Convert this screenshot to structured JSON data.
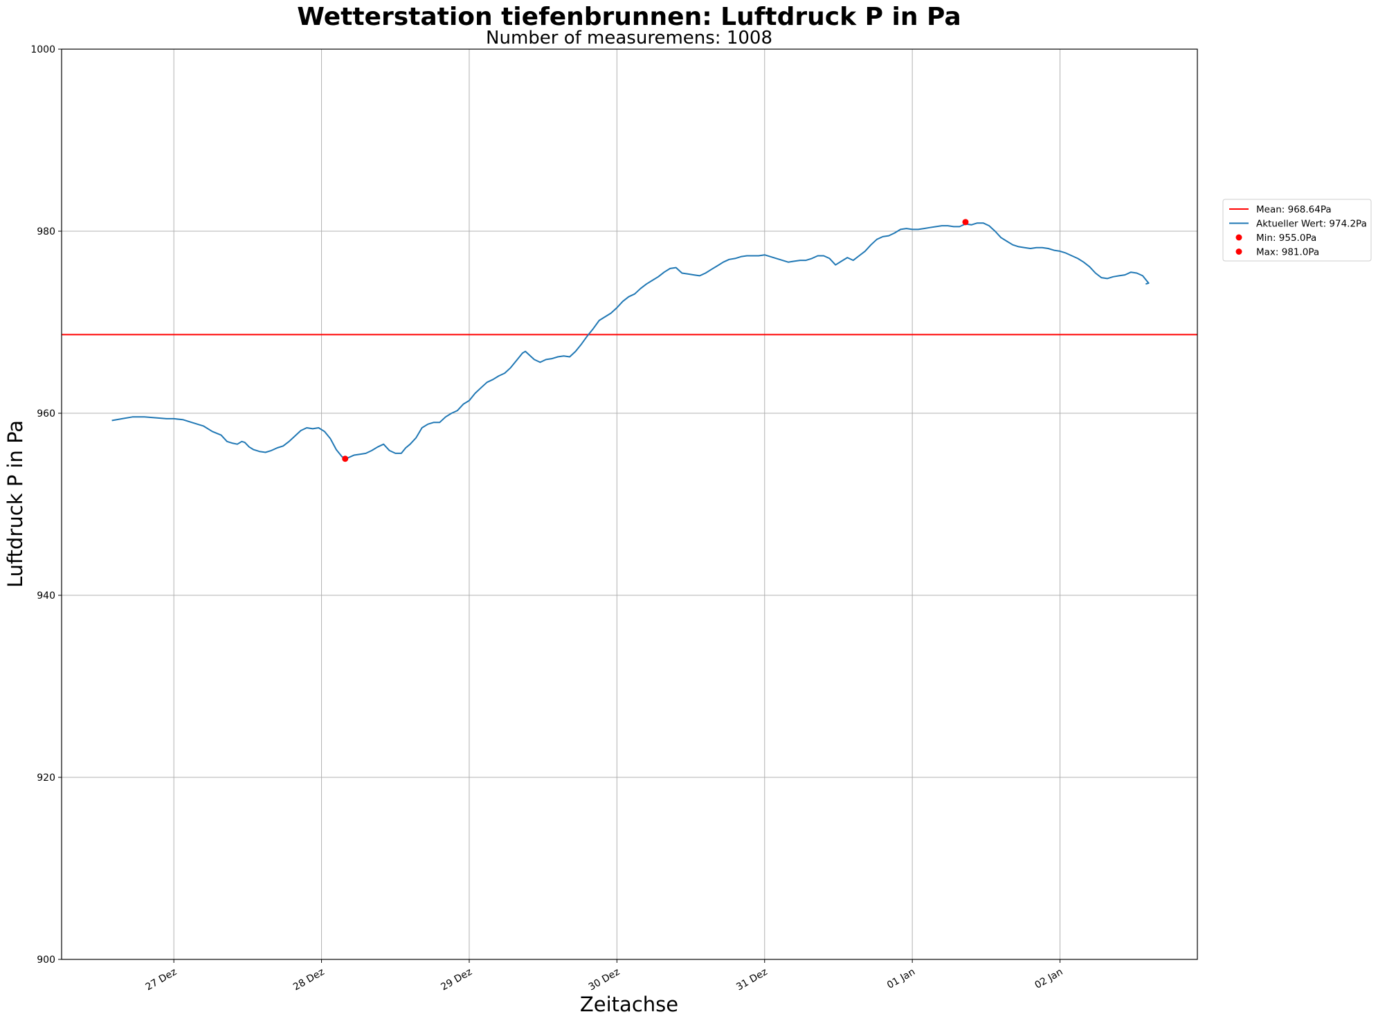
{
  "chart_data": {
    "type": "line",
    "title": "Wetterstation tiefenbrunnen: Luftdruck P in Pa",
    "subtitle": "Number of measuremens: 1008",
    "xlabel": "Zeitachse",
    "ylabel": "Luftdruck P in Pa",
    "ylim": [
      900,
      1000
    ],
    "yticks": [
      900,
      920,
      940,
      960,
      980,
      1000
    ],
    "xlim_days": [
      -0.76,
      6.93
    ],
    "xticks": [
      {
        "day": 0,
        "label": "27 Dez"
      },
      {
        "day": 1,
        "label": "28 Dez"
      },
      {
        "day": 2,
        "label": "29 Dez"
      },
      {
        "day": 3,
        "label": "30 Dez"
      },
      {
        "day": 4,
        "label": "31 Dez"
      },
      {
        "day": 5,
        "label": "01 Jan"
      },
      {
        "day": 6,
        "label": "02 Jan"
      }
    ],
    "grid": true,
    "legend_position": "outside right",
    "mean": {
      "name": "Mean: 968.64Pa",
      "value": 968.64,
      "color": "#ff0000"
    },
    "series": [
      {
        "name": "Aktueller Wert: 974.2Pa",
        "color": "#1f77b4",
        "points": [
          [
            -0.42,
            959.2
          ],
          [
            -0.35,
            959.4
          ],
          [
            -0.28,
            959.6
          ],
          [
            -0.2,
            959.6
          ],
          [
            -0.12,
            959.5
          ],
          [
            -0.05,
            959.4
          ],
          [
            0.0,
            959.4
          ],
          [
            0.06,
            959.3
          ],
          [
            0.12,
            959.0
          ],
          [
            0.2,
            958.6
          ],
          [
            0.26,
            958.0
          ],
          [
            0.32,
            957.6
          ],
          [
            0.36,
            956.9
          ],
          [
            0.4,
            956.7
          ],
          [
            0.43,
            956.6
          ],
          [
            0.46,
            956.9
          ],
          [
            0.48,
            956.8
          ],
          [
            0.51,
            956.3
          ],
          [
            0.54,
            956.0
          ],
          [
            0.58,
            955.8
          ],
          [
            0.62,
            955.7
          ],
          [
            0.66,
            955.9
          ],
          [
            0.7,
            956.2
          ],
          [
            0.74,
            956.4
          ],
          [
            0.78,
            956.9
          ],
          [
            0.82,
            957.5
          ],
          [
            0.86,
            958.1
          ],
          [
            0.9,
            958.4
          ],
          [
            0.94,
            958.3
          ],
          [
            0.98,
            958.4
          ],
          [
            1.02,
            958.0
          ],
          [
            1.06,
            957.2
          ],
          [
            1.1,
            956.0
          ],
          [
            1.14,
            955.2
          ],
          [
            1.18,
            955.1
          ],
          [
            1.22,
            955.4
          ],
          [
            1.26,
            955.5
          ],
          [
            1.3,
            955.6
          ],
          [
            1.34,
            955.9
          ],
          [
            1.38,
            956.3
          ],
          [
            1.42,
            956.6
          ],
          [
            1.46,
            955.9
          ],
          [
            1.5,
            955.6
          ],
          [
            1.54,
            955.6
          ],
          [
            1.57,
            956.2
          ],
          [
            1.6,
            956.6
          ],
          [
            1.64,
            957.3
          ],
          [
            1.68,
            958.4
          ],
          [
            1.72,
            958.8
          ],
          [
            1.76,
            959.0
          ],
          [
            1.8,
            959.0
          ],
          [
            1.84,
            959.6
          ],
          [
            1.88,
            960.0
          ],
          [
            1.92,
            960.3
          ],
          [
            1.96,
            961.0
          ],
          [
            2.0,
            961.4
          ],
          [
            2.04,
            962.2
          ],
          [
            2.08,
            962.8
          ],
          [
            2.12,
            963.4
          ],
          [
            2.16,
            963.7
          ],
          [
            2.2,
            964.1
          ],
          [
            2.24,
            964.4
          ],
          [
            2.28,
            965.0
          ],
          [
            2.32,
            965.8
          ],
          [
            2.36,
            966.6
          ],
          [
            2.38,
            966.8
          ],
          [
            2.4,
            966.5
          ],
          [
            2.44,
            965.9
          ],
          [
            2.48,
            965.6
          ],
          [
            2.52,
            965.9
          ],
          [
            2.56,
            966.0
          ],
          [
            2.6,
            966.2
          ],
          [
            2.64,
            966.3
          ],
          [
            2.68,
            966.2
          ],
          [
            2.72,
            966.8
          ],
          [
            2.76,
            967.6
          ],
          [
            2.8,
            968.5
          ],
          [
            2.84,
            969.3
          ],
          [
            2.88,
            970.2
          ],
          [
            2.92,
            970.6
          ],
          [
            2.96,
            971.0
          ],
          [
            3.0,
            971.6
          ],
          [
            3.04,
            972.3
          ],
          [
            3.08,
            972.8
          ],
          [
            3.12,
            973.1
          ],
          [
            3.16,
            973.7
          ],
          [
            3.2,
            974.2
          ],
          [
            3.24,
            974.6
          ],
          [
            3.28,
            975.0
          ],
          [
            3.32,
            975.5
          ],
          [
            3.36,
            975.9
          ],
          [
            3.4,
            976.0
          ],
          [
            3.44,
            975.4
          ],
          [
            3.48,
            975.3
          ],
          [
            3.52,
            975.2
          ],
          [
            3.56,
            975.1
          ],
          [
            3.6,
            975.4
          ],
          [
            3.64,
            975.8
          ],
          [
            3.68,
            976.2
          ],
          [
            3.72,
            976.6
          ],
          [
            3.76,
            976.9
          ],
          [
            3.8,
            977.0
          ],
          [
            3.84,
            977.2
          ],
          [
            3.88,
            977.3
          ],
          [
            3.92,
            977.3
          ],
          [
            3.96,
            977.3
          ],
          [
            4.0,
            977.4
          ],
          [
            4.04,
            977.2
          ],
          [
            4.08,
            977.0
          ],
          [
            4.12,
            976.8
          ],
          [
            4.16,
            976.6
          ],
          [
            4.2,
            976.7
          ],
          [
            4.24,
            976.8
          ],
          [
            4.28,
            976.8
          ],
          [
            4.32,
            977.0
          ],
          [
            4.36,
            977.3
          ],
          [
            4.4,
            977.3
          ],
          [
            4.44,
            977.0
          ],
          [
            4.48,
            976.3
          ],
          [
            4.52,
            976.7
          ],
          [
            4.56,
            977.1
          ],
          [
            4.6,
            976.8
          ],
          [
            4.64,
            977.3
          ],
          [
            4.68,
            977.8
          ],
          [
            4.72,
            978.5
          ],
          [
            4.76,
            979.1
          ],
          [
            4.8,
            979.4
          ],
          [
            4.84,
            979.5
          ],
          [
            4.88,
            979.8
          ],
          [
            4.92,
            980.2
          ],
          [
            4.96,
            980.3
          ],
          [
            5.0,
            980.2
          ],
          [
            5.04,
            980.2
          ],
          [
            5.08,
            980.3
          ],
          [
            5.12,
            980.4
          ],
          [
            5.16,
            980.5
          ],
          [
            5.2,
            980.6
          ],
          [
            5.24,
            980.6
          ],
          [
            5.28,
            980.5
          ],
          [
            5.32,
            980.5
          ],
          [
            5.36,
            980.8
          ],
          [
            5.4,
            980.7
          ],
          [
            5.44,
            980.9
          ],
          [
            5.48,
            980.9
          ],
          [
            5.52,
            980.6
          ],
          [
            5.56,
            980.0
          ],
          [
            5.6,
            979.3
          ],
          [
            5.64,
            978.9
          ],
          [
            5.68,
            978.5
          ],
          [
            5.72,
            978.3
          ],
          [
            5.76,
            978.2
          ],
          [
            5.8,
            978.1
          ],
          [
            5.84,
            978.2
          ],
          [
            5.88,
            978.2
          ],
          [
            5.92,
            978.1
          ],
          [
            5.96,
            977.9
          ],
          [
            6.0,
            977.8
          ],
          [
            6.04,
            977.6
          ],
          [
            6.08,
            977.3
          ],
          [
            6.12,
            977.0
          ],
          [
            6.16,
            976.6
          ],
          [
            6.2,
            976.1
          ],
          [
            6.24,
            975.4
          ],
          [
            6.28,
            974.9
          ],
          [
            6.32,
            974.8
          ],
          [
            6.36,
            975.0
          ],
          [
            6.4,
            975.1
          ],
          [
            6.44,
            975.2
          ],
          [
            6.48,
            975.5
          ],
          [
            6.52,
            975.4
          ],
          [
            6.56,
            975.1
          ],
          [
            6.58,
            974.7
          ],
          [
            6.6,
            974.3
          ],
          [
            6.58,
            974.2
          ]
        ]
      }
    ],
    "markers": [
      {
        "name": "Min: 955.0Pa",
        "day": 1.16,
        "value": 955.0,
        "color": "#ff0000"
      },
      {
        "name": "Max: 981.0Pa",
        "day": 5.36,
        "value": 981.0,
        "color": "#ff0000"
      }
    ]
  }
}
